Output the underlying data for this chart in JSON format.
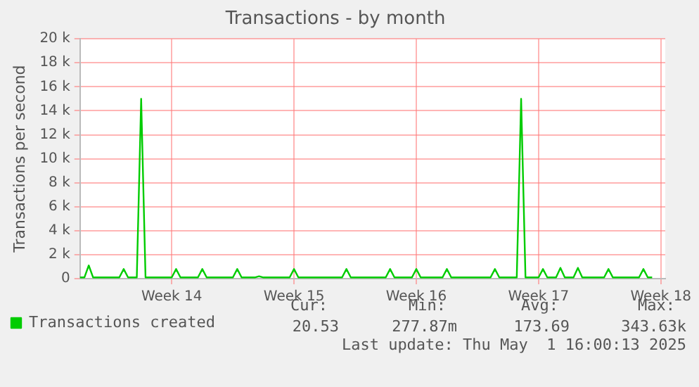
{
  "chart_data": {
    "type": "line",
    "title": "Transactions - by month",
    "ylabel": "Transactions per second",
    "categories": [
      null,
      null,
      null,
      null,
      null,
      null,
      null,
      null,
      null,
      null,
      null,
      null,
      null,
      null,
      null,
      null,
      null,
      null,
      null,
      null,
      null,
      "Week 14",
      null,
      null,
      null,
      null,
      null,
      null,
      null,
      null,
      null,
      null,
      null,
      null,
      null,
      null,
      null,
      null,
      null,
      null,
      null,
      null,
      null,
      null,
      null,
      null,
      null,
      null,
      null,
      "Week 15",
      null,
      null,
      null,
      null,
      null,
      null,
      null,
      null,
      null,
      null,
      null,
      null,
      null,
      null,
      null,
      null,
      null,
      null,
      null,
      null,
      null,
      null,
      null,
      null,
      null,
      null,
      null,
      "Week 16",
      null,
      null,
      null,
      null,
      null,
      null,
      null,
      null,
      null,
      null,
      null,
      null,
      null,
      null,
      null,
      null,
      null,
      null,
      null,
      null,
      null,
      null,
      null,
      null,
      null,
      null,
      null,
      "Week 17",
      null,
      null,
      null,
      null,
      null,
      null,
      null,
      null,
      null,
      null,
      null,
      null,
      null,
      null,
      null,
      null,
      null,
      null,
      null,
      null,
      null,
      null,
      null,
      null,
      null,
      null,
      null,
      "Week 18",
      null
    ],
    "series": [
      {
        "name": "Transactions created",
        "color": "#00cc00",
        "values": [
          100,
          100,
          1100,
          100,
          100,
          100,
          100,
          100,
          100,
          100,
          800,
          100,
          100,
          100,
          15000,
          100,
          100,
          100,
          100,
          100,
          100,
          100,
          800,
          100,
          100,
          100,
          100,
          100,
          800,
          100,
          100,
          100,
          100,
          100,
          100,
          100,
          800,
          100,
          100,
          100,
          100,
          200,
          100,
          100,
          100,
          100,
          100,
          100,
          100,
          800,
          100,
          100,
          100,
          100,
          100,
          100,
          100,
          100,
          100,
          100,
          100,
          800,
          100,
          100,
          100,
          100,
          100,
          100,
          100,
          100,
          100,
          800,
          100,
          100,
          100,
          100,
          100,
          800,
          100,
          100,
          100,
          100,
          100,
          100,
          800,
          100,
          100,
          100,
          100,
          100,
          100,
          100,
          100,
          100,
          100,
          800,
          100,
          100,
          100,
          100,
          100,
          15000,
          100,
          100,
          100,
          100,
          800,
          100,
          100,
          100,
          900,
          100,
          100,
          100,
          900,
          100,
          100,
          100,
          100,
          100,
          100,
          800,
          100,
          100,
          100,
          100,
          100,
          100,
          100,
          800,
          100,
          100,
          null,
          null,
          null
        ]
      }
    ],
    "ylim": [
      0,
      20000
    ],
    "yticks": [
      0,
      {
        "value": 2000,
        "label": "2 k"
      },
      {
        "value": 4000,
        "label": "4 k"
      },
      {
        "value": 6000,
        "label": "6 k"
      },
      {
        "value": 8000,
        "label": "8 k"
      },
      {
        "value": 10000,
        "label": "10 k"
      },
      {
        "value": 12000,
        "label": "12 k"
      },
      {
        "value": 14000,
        "label": "14 k"
      },
      {
        "value": 16000,
        "label": "16 k"
      },
      {
        "value": 18000,
        "label": "18 k"
      },
      {
        "value": 20000,
        "label": "20 k"
      }
    ],
    "grid": true,
    "legend": "bottom left",
    "marker": "none",
    "line_style": "solid",
    "annotations": [
      "Cur:",
      "20.53",
      "Min:",
      "277.87m",
      "Avg:",
      "173.69",
      "Max:",
      "343.63k",
      "Last update: Thu May  1 16:00:13 2025"
    ]
  }
}
